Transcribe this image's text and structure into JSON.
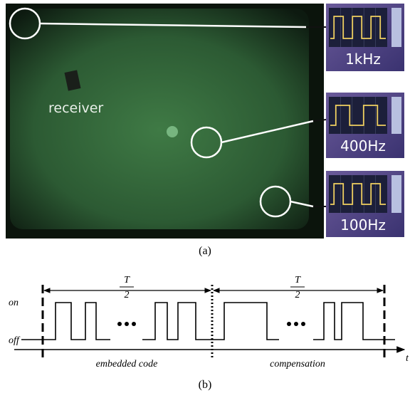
{
  "figure_a": {
    "receiver_label": "receiver",
    "scopes": [
      {
        "frequency": "1kHz"
      },
      {
        "frequency": "400Hz"
      },
      {
        "frequency": "100Hz"
      }
    ],
    "caption": "(a)"
  },
  "figure_b": {
    "periods": [
      {
        "numerator": "T",
        "denominator": "2"
      },
      {
        "numerator": "T",
        "denominator": "2"
      }
    ],
    "level_on": "on",
    "level_off": "off",
    "segments": [
      "embedded code",
      "compensation"
    ],
    "axis_label": "t",
    "caption": "(b)"
  }
}
